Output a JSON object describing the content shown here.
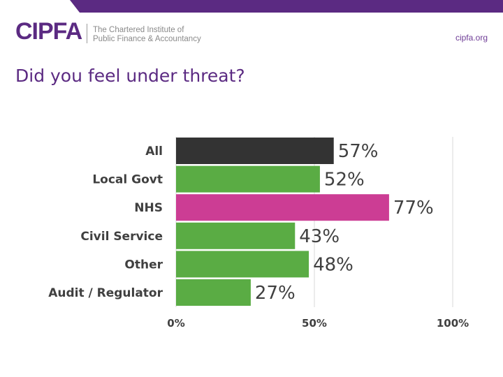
{
  "header": {
    "logo_text": "CIPFA",
    "tagline_line1": "The Chartered Institute of",
    "tagline_line2": "Public Finance & Accountancy",
    "site": "cipfa.org"
  },
  "colors": {
    "brand_purple": "#5b2a82",
    "bar_all": "#333333",
    "bar_default": "#5aac44",
    "bar_nhs": "#cc3d94",
    "gridline": "#d9d9d9"
  },
  "chart_data": {
    "type": "bar",
    "orientation": "horizontal",
    "title": "Did you feel under threat?",
    "categories": [
      "All",
      "Local Govt",
      "NHS",
      "Civil Service",
      "Other",
      "Audit / Regulator"
    ],
    "values": [
      57,
      52,
      77,
      43,
      48,
      27
    ],
    "value_labels": [
      "57%",
      "52%",
      "77%",
      "43%",
      "48%",
      "27%"
    ],
    "bar_colors": [
      "#333333",
      "#5aac44",
      "#cc3d94",
      "#5aac44",
      "#5aac44",
      "#5aac44"
    ],
    "xlim": [
      0,
      100
    ],
    "xticks": [
      0,
      50,
      100
    ],
    "xtick_labels": [
      "0%",
      "50%",
      "100%"
    ],
    "grid": true,
    "legend": "none"
  }
}
